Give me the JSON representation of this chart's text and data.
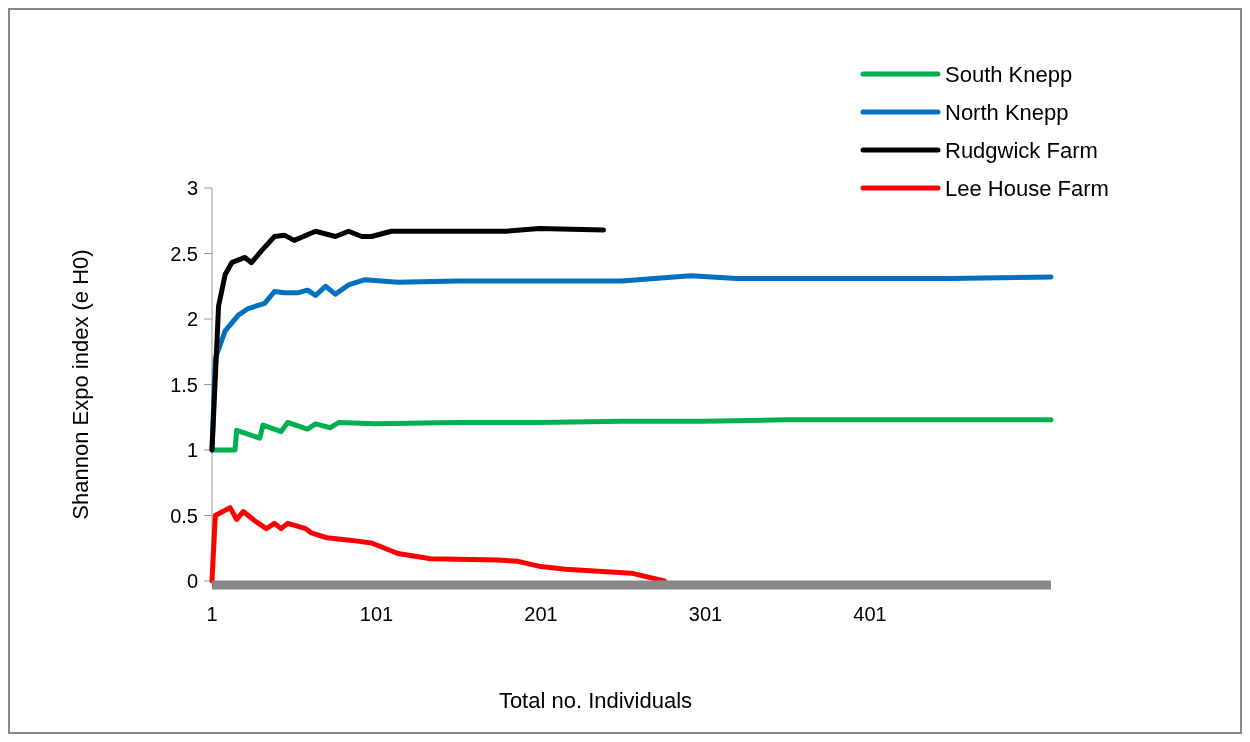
{
  "chart_data": {
    "type": "line",
    "xlabel": "Total no. Individuals",
    "ylabel": "Shannon Expo index (e H0)",
    "xlim": [
      1,
      511
    ],
    "xticks": [
      1,
      101,
      201,
      301,
      401
    ],
    "ylim": [
      0,
      3
    ],
    "yticks": [
      0,
      0.5,
      1,
      1.5,
      2,
      2.5,
      3
    ],
    "grid": false,
    "legend": "top right",
    "marker": "none",
    "line_style": "solid",
    "series": [
      {
        "name": "South Knepp",
        "color": "#00b050",
        "x": [
          1,
          15,
          16,
          30,
          32,
          43,
          47,
          59,
          64,
          73,
          78,
          100,
          150,
          200,
          250,
          300,
          350,
          400,
          450,
          511
        ],
        "values": [
          1,
          1,
          1.15,
          1.09,
          1.19,
          1.14,
          1.21,
          1.16,
          1.2,
          1.17,
          1.21,
          1.2,
          1.21,
          1.21,
          1.22,
          1.22,
          1.23,
          1.23,
          1.23,
          1.23
        ]
      },
      {
        "name": "North Knepp",
        "color": "#0070c0",
        "x": [
          1,
          3,
          9,
          17,
          23,
          33,
          39,
          45,
          53,
          59,
          64,
          70,
          76,
          84,
          94,
          114,
          150,
          200,
          250,
          292,
          320,
          400,
          450,
          511
        ],
        "values": [
          1,
          1.7,
          1.91,
          2.03,
          2.08,
          2.12,
          2.21,
          2.2,
          2.2,
          2.22,
          2.18,
          2.25,
          2.19,
          2.26,
          2.3,
          2.28,
          2.29,
          2.29,
          2.29,
          2.33,
          2.31,
          2.31,
          2.31,
          2.32
        ]
      },
      {
        "name": "Rudgwick Farm",
        "color": "#000000",
        "x": [
          1,
          5,
          9,
          13,
          21,
          25,
          31,
          39,
          45,
          51,
          64,
          76,
          84,
          92,
          98,
          110,
          150,
          180,
          200,
          239
        ],
        "values": [
          1,
          2.1,
          2.34,
          2.43,
          2.47,
          2.43,
          2.52,
          2.63,
          2.64,
          2.6,
          2.67,
          2.63,
          2.67,
          2.63,
          2.63,
          2.67,
          2.67,
          2.67,
          2.69,
          2.68
        ]
      },
      {
        "name": "Lee House Farm",
        "color": "#ff0000",
        "x": [
          1,
          3,
          12,
          16,
          20,
          27,
          34,
          39,
          43,
          47,
          58,
          61,
          71,
          86,
          98,
          114,
          134,
          175,
          187,
          201,
          216,
          256,
          276
        ],
        "values": [
          0,
          0.5,
          0.56,
          0.47,
          0.53,
          0.46,
          0.4,
          0.44,
          0.4,
          0.44,
          0.4,
          0.37,
          0.33,
          0.31,
          0.29,
          0.21,
          0.17,
          0.16,
          0.15,
          0.11,
          0.09,
          0.06,
          0
        ]
      }
    ]
  }
}
